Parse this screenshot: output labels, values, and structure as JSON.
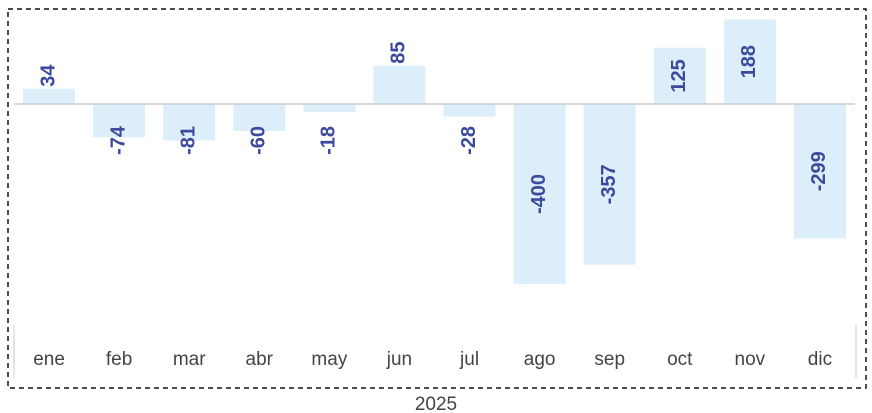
{
  "chart_data": {
    "type": "bar",
    "categories": [
      "ene",
      "feb",
      "mar",
      "abr",
      "may",
      "jun",
      "jul",
      "ago",
      "sep",
      "oct",
      "nov",
      "dic"
    ],
    "values": [
      34,
      -74,
      -81,
      -60,
      -18,
      85,
      -28,
      -400,
      -357,
      125,
      188,
      -299
    ],
    "color": "#ddeefb",
    "xlabel": "2025",
    "ylim": [
      -420,
      200
    ]
  }
}
